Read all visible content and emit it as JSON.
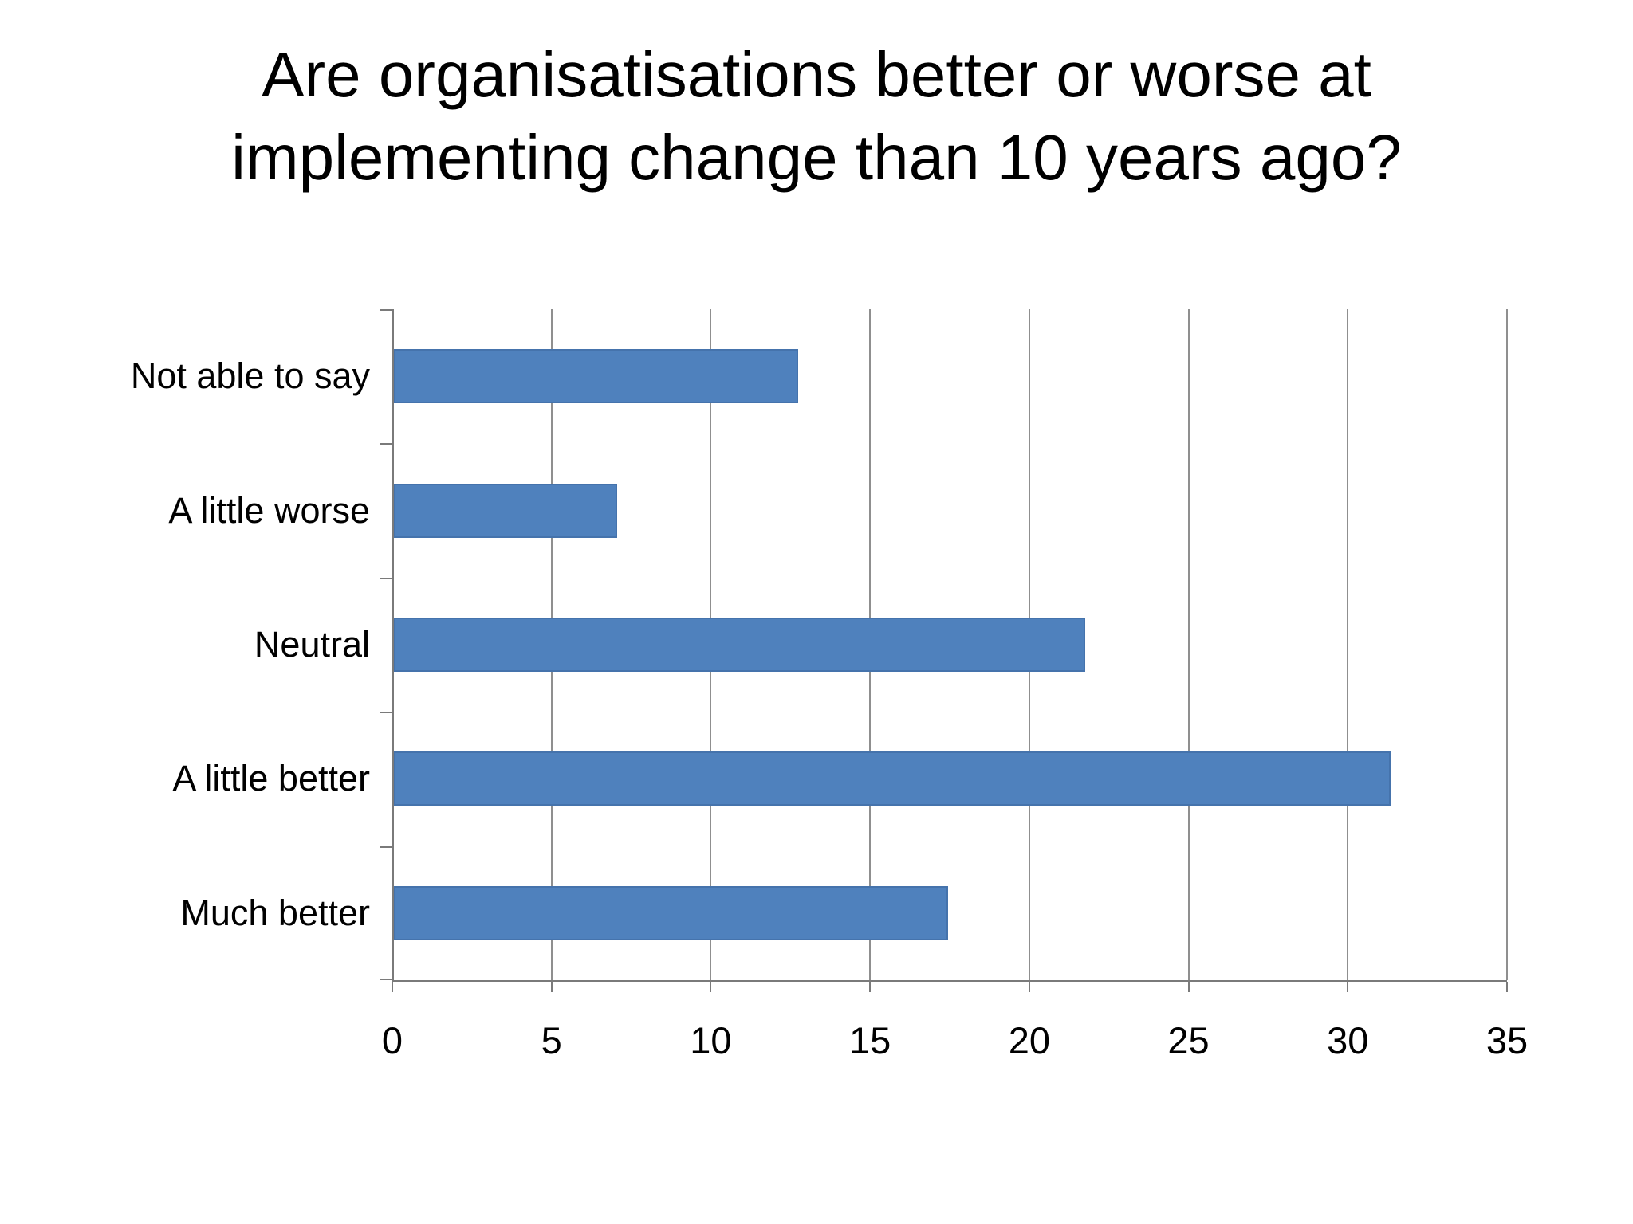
{
  "slide": {
    "title_line1": "Are organisatisations better or worse at",
    "title_line2": "implementing change than 10 years ago?"
  },
  "chart_data": {
    "type": "bar",
    "orientation": "horizontal",
    "title": "Are organisatisations better or worse at implementing change than 10 years ago?",
    "categories": [
      "Not able to say",
      "A little worse",
      "Neutral",
      "A little better",
      "Much better"
    ],
    "values": [
      12.7,
      7,
      21.7,
      31.3,
      17.4
    ],
    "xlabel": "",
    "ylabel": "",
    "xlim": [
      0,
      35
    ],
    "xticks": [
      0,
      5,
      10,
      15,
      20,
      25,
      30,
      35
    ],
    "grid": true,
    "legend": false,
    "bar_color": "#4F81BD",
    "gridline_color": "#8F8F8F",
    "axis_color": "#7A7A7A",
    "text_color": "#000000"
  }
}
